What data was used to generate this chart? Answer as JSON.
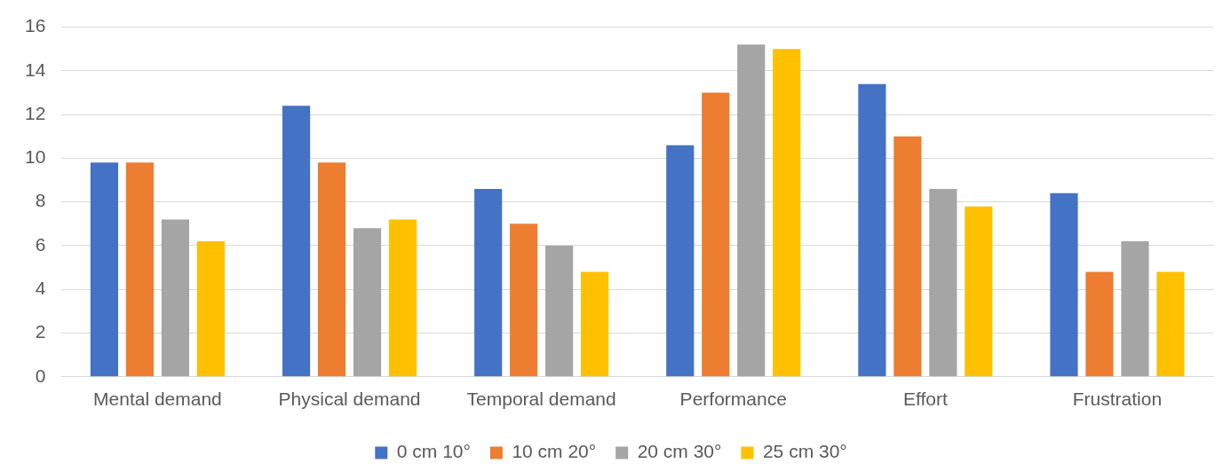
{
  "chart_data": {
    "type": "bar",
    "categories": [
      "Mental demand",
      "Physical demand",
      "Temporal demand",
      "Performance",
      "Effort",
      "Frustration"
    ],
    "series": [
      {
        "name": "0 cm 10°",
        "color": "#4472c4",
        "values": [
          9.8,
          12.4,
          8.6,
          10.6,
          13.4,
          8.4
        ]
      },
      {
        "name": "10 cm 20°",
        "color": "#ed7d31",
        "values": [
          9.8,
          9.8,
          7.0,
          13.0,
          11.0,
          4.8
        ]
      },
      {
        "name": "20 cm 30°",
        "color": "#a5a5a5",
        "values": [
          7.2,
          6.8,
          6.0,
          15.2,
          8.6,
          6.2
        ]
      },
      {
        "name": "25 cm 30°",
        "color": "#ffc000",
        "values": [
          6.2,
          7.2,
          4.8,
          15.0,
          7.8,
          4.8
        ]
      }
    ],
    "ylim": [
      0,
      16
    ],
    "yticks": [
      0,
      2,
      4,
      6,
      8,
      10,
      12,
      14,
      16
    ],
    "grid": "y",
    "legend": "bottom"
  }
}
